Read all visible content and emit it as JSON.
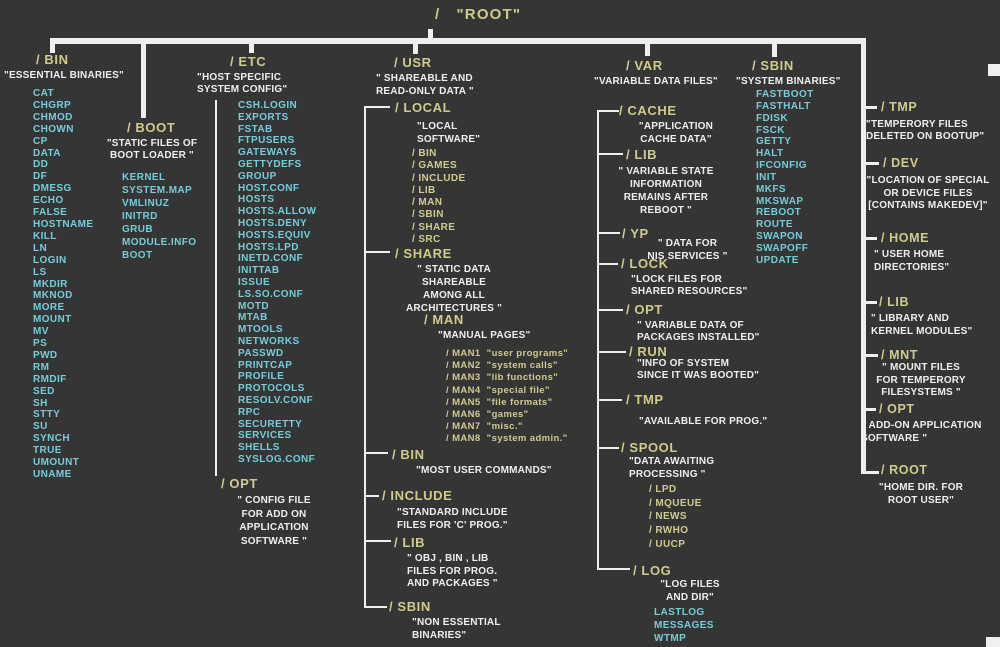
{
  "colors": {
    "background": "#353535",
    "directory_name": "#cfcb8e",
    "description_text": "#efefef",
    "file_name": "#74cdd9",
    "connector_line": "#efefef"
  },
  "root": {
    "label": "/   \"ROOT\""
  },
  "columns": {
    "bin": {
      "name": "/ BIN",
      "desc": "\"ESSENTIAL BINARIES\"",
      "files": [
        "CAT",
        "CHGRP",
        "CHMOD",
        "CHOWN",
        "CP",
        "DATA",
        "DD",
        "DF",
        "DMESG",
        "ECHO",
        "FALSE",
        "HOSTNAME",
        "KILL",
        "LN",
        "LOGIN",
        "LS",
        "MKDIR",
        "MKNOD",
        "MORE",
        "MOUNT",
        "MV",
        "PS",
        "PWD",
        "RM",
        "RMDIF",
        "SED",
        "SH",
        "STTY",
        "SU",
        "SYNCH",
        "TRUE",
        "UMOUNT",
        "UNAME"
      ]
    },
    "boot": {
      "name": "/ BOOT",
      "desc": "\"STATIC FILES OF\nBOOT LOADER \"",
      "files": [
        "KERNEL",
        "SYSTEM.MAP",
        "VMLINUZ",
        "INITRD",
        "GRUB",
        "MODULE.INFO",
        "BOOT"
      ]
    },
    "etc": {
      "name": "/ ETC",
      "desc": "\"HOST SPECIFIC\nSYSTEM CONFIG\"",
      "files": [
        "CSH.LOGIN",
        "EXPORTS",
        "FSTAB",
        "FTPUSERS",
        "GATEWAYS",
        "GETTYDEFS",
        "GROUP",
        "HOST.CONF",
        "HOSTS",
        "HOSTS.ALLOW",
        "HOSTS.DENY",
        "HOSTS.EQUIV",
        "HOSTS.LPD",
        "INETD.CONF",
        "INITTAB",
        "ISSUE",
        "LS.SO.CONF",
        "MOTD",
        "MTAB",
        "MTOOLS",
        "NETWORKS",
        "PASSWD",
        "PRINTCAP",
        "PROFILE",
        "PROTOCOLS",
        "RESOLV.CONF",
        "RPC",
        "SECURETTY",
        "SERVICES",
        "SHELLS",
        "SYSLOG.CONF"
      ],
      "opt": {
        "name": "/ OPT",
        "desc": "\" CONFIG FILE\nFOR ADD ON\nAPPLICATION\nSOFTWARE \""
      }
    },
    "usr": {
      "name": "/ USR",
      "desc": "\" SHAREABLE AND\nREAD-ONLY DATA \"",
      "local": {
        "name": "/ LOCAL",
        "desc": "\"LOCAL\nSOFTWARE\"",
        "dirs": [
          "/ BIN",
          "/ GAMES",
          "/ INCLUDE",
          "/ LIB",
          "/ MAN",
          "/ SBIN",
          "/ SHARE",
          "/ SRC"
        ]
      },
      "share": {
        "name": "/ SHARE",
        "desc": "\" STATIC DATA\nSHAREABLE\nAMONG ALL\nARCHITECTURES \"",
        "man": {
          "name": "/ MAN",
          "desc": "\"MANUAL PAGES\"",
          "pages": [
            "/ MAN1  \"user programs\"",
            "/ MAN2  \"system calls\"",
            "/ MAN3  \"lib functions\"",
            "/ MAN4  \"special file\"",
            "/ MAN5  \"file formats\"",
            "/ MAN6  \"games\"",
            "/ MAN7  \"misc.\"",
            "/ MAN8  \"system admin.\""
          ]
        }
      },
      "bin": {
        "name": "/ BIN",
        "desc": "\"MOST USER COMMANDS\""
      },
      "include": {
        "name": "/ INCLUDE",
        "desc": "\"STANDARD INCLUDE\nFILES FOR  'C' PROG.\""
      },
      "lib": {
        "name": "/ LIB",
        "desc": "\" OBJ , BIN , LIB\nFILES FOR PROG.\nAND PACKAGES \""
      },
      "sbin": {
        "name": "/ SBIN",
        "desc": "\"NON ESSENTIAL\nBINARIES\""
      }
    },
    "var": {
      "name": "/ VAR",
      "desc": "\"VARIABLE DATA FILES\"",
      "children": [
        {
          "name": "/ CACHE",
          "desc": "\"APPLICATION\nCACHE DATA\""
        },
        {
          "name": "/ LIB",
          "desc": "\" VARIABLE STATE\nINFORMATION\nREMAINS  AFTER\nREBOOT \""
        },
        {
          "name": "/ YP",
          "desc": "\" DATA FOR\nNIS SERVICES \""
        },
        {
          "name": "/ LOCK",
          "desc": "\"LOCK FILES FOR\nSHARED RESOURCES\""
        },
        {
          "name": "/ OPT",
          "desc": "\"  VARIABLE DATA OF\nPACKAGES INSTALLED\""
        },
        {
          "name": "/ RUN",
          "desc": "\"INFO OF SYSTEM\nSINCE IT WAS BOOTED\""
        },
        {
          "name": "/ TMP",
          "desc": "\"AVAILABLE FOR PROG.\""
        },
        {
          "name": "/ SPOOL",
          "desc": "\"DATA AWAITING\nPROCESSING \"",
          "dirs": [
            "/ LPD",
            "/ MQUEUE",
            "/ NEWS",
            "/ RWHO",
            "/ UUCP"
          ]
        },
        {
          "name": "/ LOG",
          "desc": "\"LOG FILES\nAND DIR\"",
          "files": [
            "LASTLOG",
            "MESSAGES",
            "WTMP"
          ]
        }
      ]
    },
    "sbin": {
      "name": "/ SBIN",
      "desc": "\"SYSTEM BINARIES\"",
      "files": [
        "FASTBOOT",
        "FASTHALT",
        "FDISK",
        "FSCK",
        "GETTY",
        "HALT",
        "IFCONFIG",
        "INIT",
        "MKFS",
        "MKSWAP",
        "REBOOT",
        "ROUTE",
        "SWAPON",
        "SWAPOFF",
        "UPDATE"
      ]
    },
    "right": {
      "items": [
        {
          "name": "/ TMP",
          "desc": "\"TEMPERORY FILES\nDELETED ON BOOTUP\""
        },
        {
          "name": "/ DEV",
          "desc": "\"LOCATION OF SPECIAL\nOR DEVICE FILES\n[CONTAINS MAKEDEV]\""
        },
        {
          "name": "/ HOME",
          "desc": "\" USER HOME\nDIRECTORIES\""
        },
        {
          "name": "/ LIB",
          "desc": "\"  LIBRARY AND\nKERNEL MODULES\""
        },
        {
          "name": "/ MNT",
          "desc": "\"  MOUNT FILES\nFOR TEMPERORY\nFILESYSTEMS \""
        },
        {
          "name": "/ OPT",
          "desc": "\" ADD-ON APPLICATION\nSOFTWARE \""
        },
        {
          "name": "/ ROOT",
          "desc": "\"HOME DIR. FOR\nROOT USER\""
        }
      ]
    }
  }
}
